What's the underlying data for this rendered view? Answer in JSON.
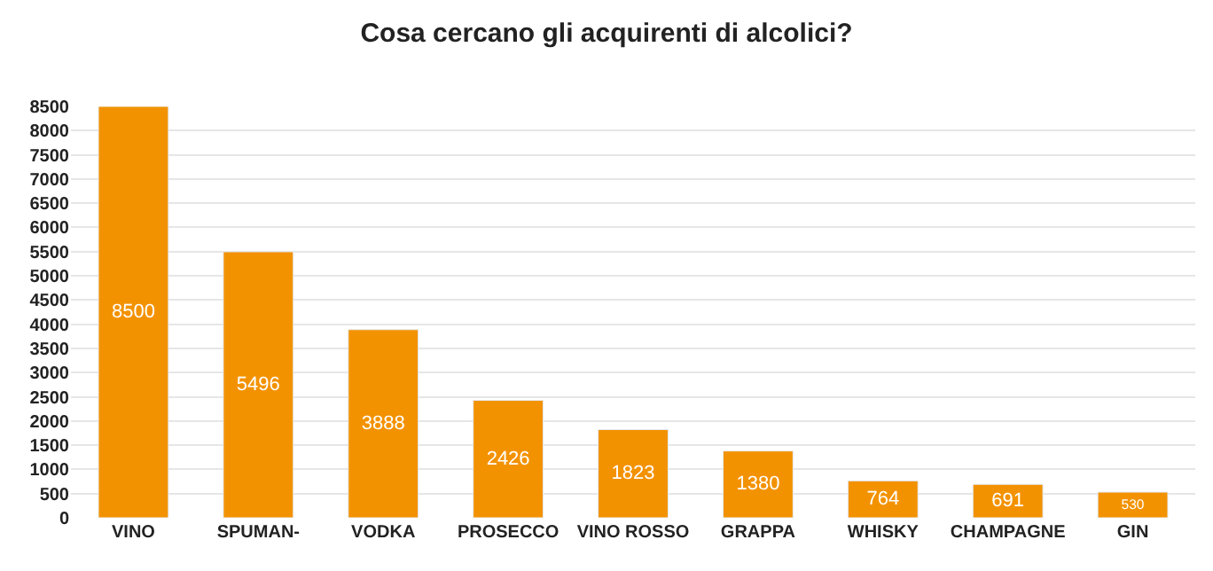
{
  "chart_data": {
    "type": "bar",
    "title": "Cosa cercano gli acquirenti di alcolici?",
    "categories": [
      "VINO",
      "SPUMAN-",
      "VODKA",
      "PROSECCO",
      "VINO ROSSO",
      "GRAPPA",
      "WHISKY",
      "CHAMPAGNE",
      "GIN"
    ],
    "values": [
      8500,
      5496,
      3888,
      2426,
      1823,
      1380,
      764,
      691,
      530
    ],
    "color": "#f39200",
    "ylim": [
      0,
      8500
    ],
    "yticks": [
      0,
      500,
      1000,
      1500,
      2000,
      2500,
      3000,
      3500,
      4000,
      4500,
      5000,
      5500,
      6000,
      6500,
      7000,
      7500,
      8000,
      8500
    ],
    "grid": "y",
    "data_labels": true
  }
}
